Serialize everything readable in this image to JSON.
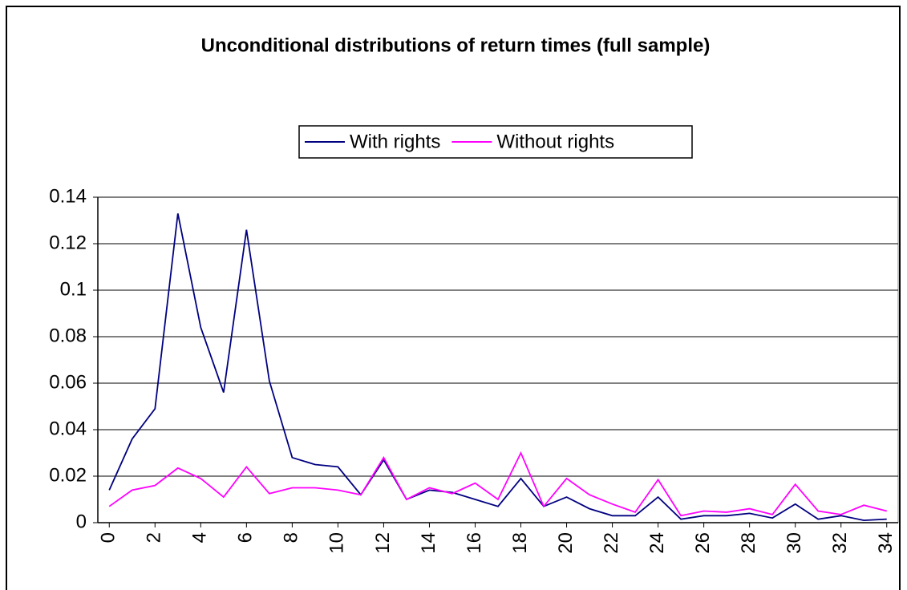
{
  "chart_data": {
    "type": "line",
    "title": "Unconditional distributions of return times (full sample)",
    "x": [
      0,
      1,
      2,
      3,
      4,
      5,
      6,
      7,
      8,
      9,
      10,
      11,
      12,
      13,
      14,
      15,
      16,
      17,
      18,
      19,
      20,
      21,
      22,
      23,
      24,
      25,
      26,
      27,
      28,
      29,
      30,
      31,
      32,
      33,
      34
    ],
    "xlim": [
      -0.5,
      34.5
    ],
    "xticks": [
      0,
      2,
      4,
      6,
      8,
      10,
      12,
      14,
      16,
      18,
      20,
      22,
      24,
      26,
      28,
      30,
      32,
      34
    ],
    "ylim": [
      0,
      0.14
    ],
    "yticks": [
      0,
      0.02,
      0.04,
      0.06,
      0.08,
      0.1,
      0.12,
      0.14
    ],
    "grid": true,
    "legend": "top",
    "series": [
      {
        "name": "With rights",
        "color": "#000080",
        "values": [
          0.014,
          0.036,
          0.049,
          0.133,
          0.084,
          0.056,
          0.126,
          0.061,
          0.028,
          0.025,
          0.024,
          0.012,
          0.027,
          0.01,
          0.014,
          0.013,
          0.01,
          0.007,
          0.019,
          0.007,
          0.011,
          0.006,
          0.003,
          0.003,
          0.011,
          0.0015,
          0.003,
          0.003,
          0.004,
          0.002,
          0.008,
          0.0015,
          0.003,
          0.001,
          0.0015
        ]
      },
      {
        "name": "Without rights",
        "color": "#ff00ff",
        "values": [
          0.007,
          0.014,
          0.016,
          0.0235,
          0.019,
          0.011,
          0.024,
          0.0125,
          0.015,
          0.015,
          0.014,
          0.012,
          0.028,
          0.01,
          0.015,
          0.0125,
          0.017,
          0.01,
          0.03,
          0.007,
          0.019,
          0.012,
          0.008,
          0.0045,
          0.0185,
          0.003,
          0.005,
          0.0045,
          0.006,
          0.0035,
          0.0165,
          0.005,
          0.0035,
          0.0075,
          0.005
        ]
      }
    ]
  }
}
